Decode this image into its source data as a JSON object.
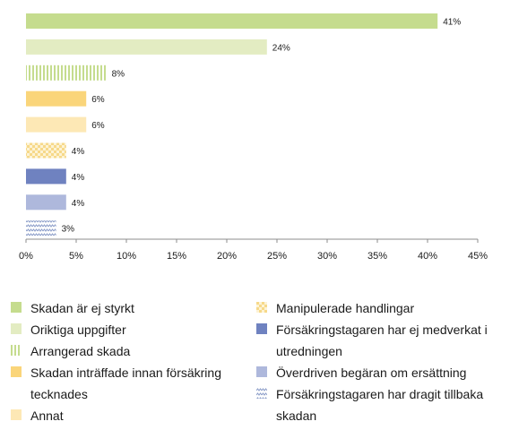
{
  "chart_data": {
    "type": "bar",
    "orientation": "horizontal",
    "categories": [
      "Skadan är ej styrkt",
      "Oriktiga uppgifter",
      "Arrangerad skada",
      "Skadan inträffade innan försäkring tecknades",
      "Annat",
      "Manipulerade handlingar",
      "Försäkringstagaren har ej medverkat i utredningen",
      "Överdriven begäran om ersättning",
      "Försäkringstagaren har dragit tillbaka skadan"
    ],
    "values": [
      41,
      24,
      8,
      6,
      6,
      4,
      4,
      4,
      3
    ],
    "data_labels": [
      "41%",
      "24%",
      "8%",
      "6%",
      "6%",
      "4%",
      "4%",
      "4%",
      "3%"
    ],
    "xlim": [
      0,
      45
    ],
    "x_ticks": [
      0,
      5,
      10,
      15,
      20,
      25,
      30,
      35,
      40,
      45
    ],
    "x_tick_labels": [
      "0%",
      "5%",
      "10%",
      "15%",
      "20%",
      "25%",
      "30%",
      "35%",
      "40%",
      "45%"
    ],
    "grid": false,
    "legend_position": "bottom",
    "styles": [
      {
        "color": "#c5dc8e",
        "pattern": "solid"
      },
      {
        "color": "#e3ecc2",
        "pattern": "solid"
      },
      {
        "color": "#c5dc8e",
        "pattern": "vertical-stripes"
      },
      {
        "color": "#fad57a",
        "pattern": "solid"
      },
      {
        "color": "#fde8b5",
        "pattern": "solid"
      },
      {
        "color": "#f6d98a",
        "pattern": "checker"
      },
      {
        "color": "#6f82c0",
        "pattern": "solid"
      },
      {
        "color": "#aeb8dc",
        "pattern": "solid"
      },
      {
        "color": "#8a9cc8",
        "pattern": "zigzag"
      }
    ]
  },
  "legend": {
    "left": [
      {
        "index": 0,
        "label": "Skadan är ej styrkt"
      },
      {
        "index": 1,
        "label": "Oriktiga uppgifter"
      },
      {
        "index": 2,
        "label": "Arrangerad skada"
      },
      {
        "index": 3,
        "label": "Skadan inträffade innan försäkring tecknades"
      },
      {
        "index": 4,
        "label": "Annat"
      }
    ],
    "right": [
      {
        "index": 5,
        "label": "Manipulerade handlingar"
      },
      {
        "index": 6,
        "label": "Försäkringstagaren har ej medverkat i utredningen"
      },
      {
        "index": 7,
        "label": "Överdriven begäran om ersättning"
      },
      {
        "index": 8,
        "label": "Försäkringstagaren har dragit tillbaka skadan"
      }
    ]
  }
}
